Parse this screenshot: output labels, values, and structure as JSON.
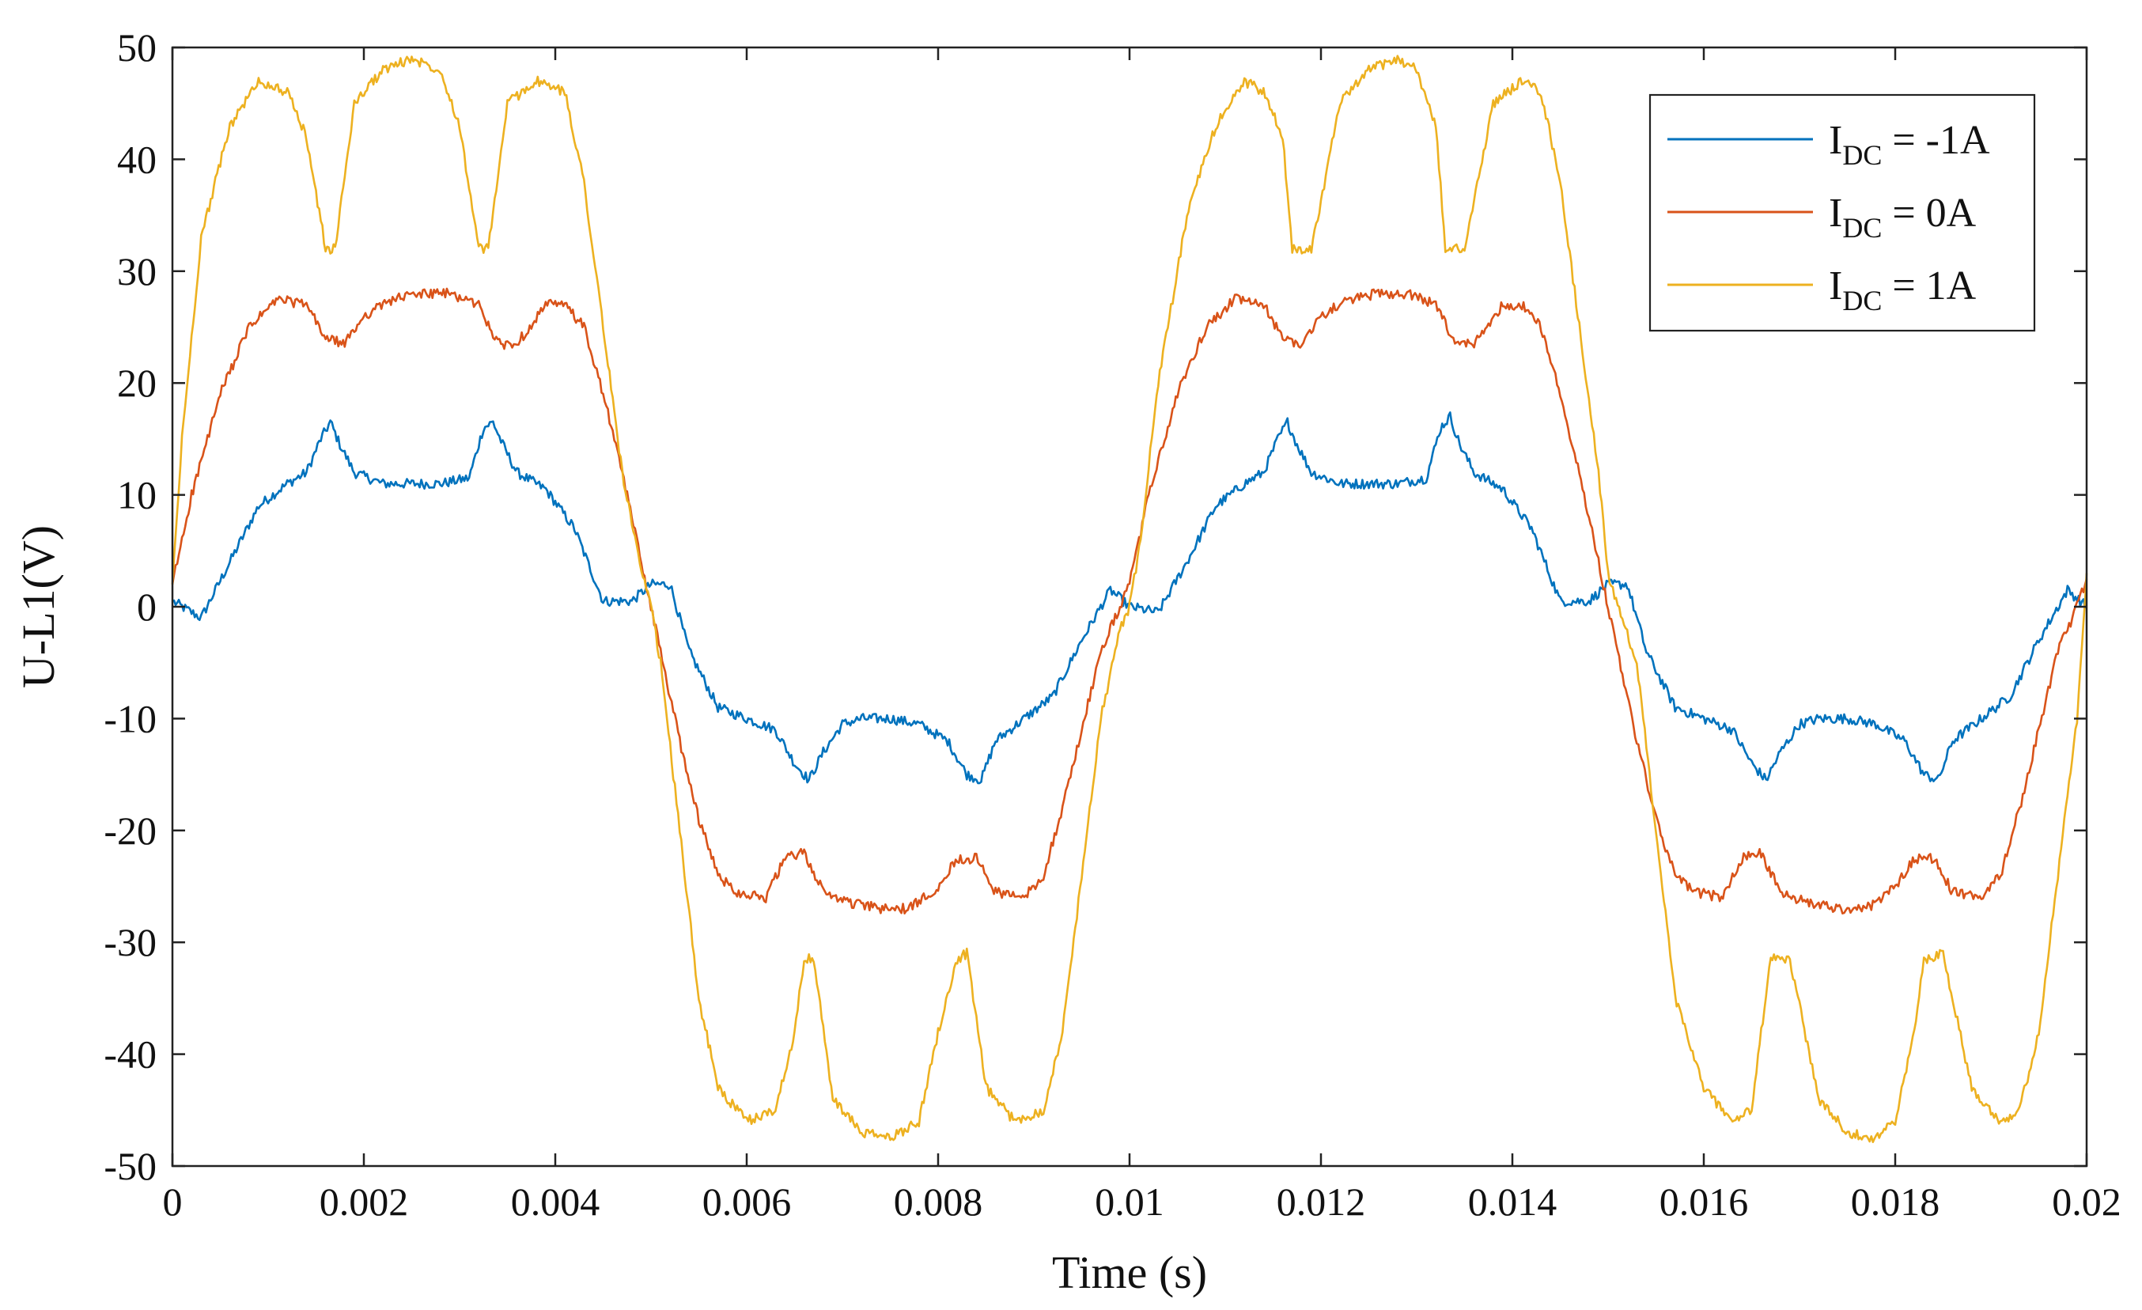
{
  "chart_data": {
    "type": "line",
    "xlabel": "Time (s)",
    "ylabel": "U-L1(V)",
    "xlim": [
      0,
      0.02
    ],
    "ylim": [
      -50,
      50
    ],
    "xticks": [
      0,
      0.002,
      0.004,
      0.006,
      0.008,
      0.01,
      0.012,
      0.014,
      0.016,
      0.018,
      0.02
    ],
    "xtick_labels": [
      "0",
      "0.002",
      "0.004",
      "0.006",
      "0.008",
      "0.01",
      "0.012",
      "0.014",
      "0.016",
      "0.018",
      "0.02"
    ],
    "yticks": [
      -50,
      -40,
      -30,
      -20,
      -10,
      0,
      10,
      20,
      30,
      40,
      50
    ],
    "ytick_labels": [
      "-50",
      "-40",
      "-30",
      "-20",
      "-10",
      "0",
      "10",
      "20",
      "30",
      "40",
      "50"
    ],
    "grid": false,
    "legend_position": "top-right",
    "series": [
      {
        "label_main": "I",
        "label_sub": "DC",
        "label_rest": " = -1A",
        "color": "#0072BD",
        "x": [
          0,
          0.0003,
          0.0006,
          0.0009,
          0.0012,
          0.0014,
          0.00155,
          0.00165,
          0.00175,
          0.0019,
          0.0022,
          0.0025,
          0.0028,
          0.0031,
          0.00325,
          0.00335,
          0.00345,
          0.0036,
          0.0039,
          0.0042,
          0.0045,
          0.0048,
          0.005,
          0.0052,
          0.0054,
          0.0057,
          0.006,
          0.0063,
          0.0065,
          0.00665,
          0.0068,
          0.007,
          0.0072,
          0.0075,
          0.0078,
          0.0081,
          0.0083,
          0.00845,
          0.0086,
          0.0089,
          0.0092,
          0.0095,
          0.0098,
          0.01,
          0.0103,
          0.0106,
          0.0109,
          0.0112,
          0.0114,
          0.01155,
          0.01165,
          0.01175,
          0.0119,
          0.0122,
          0.0125,
          0.0128,
          0.0131,
          0.01325,
          0.01335,
          0.01345,
          0.0136,
          0.0139,
          0.0142,
          0.0145,
          0.0148,
          0.015,
          0.0152,
          0.0154,
          0.0157,
          0.016,
          0.0163,
          0.0165,
          0.01665,
          0.0168,
          0.017,
          0.0172,
          0.0175,
          0.0178,
          0.0181,
          0.0183,
          0.01845,
          0.0186,
          0.0189,
          0.0192,
          0.0195,
          0.0198,
          0.02
        ],
        "y": [
          0.5,
          -1,
          4,
          9,
          11,
          12,
          15,
          16.5,
          14.5,
          12,
          11,
          11,
          11,
          11.5,
          16,
          16.5,
          14.5,
          12,
          10.5,
          7,
          0.5,
          0.5,
          2,
          2,
          -4,
          -9,
          -10,
          -11,
          -14,
          -15.5,
          -13,
          -10.5,
          -10,
          -10,
          -10.5,
          -12,
          -15,
          -15.5,
          -12,
          -10,
          -8,
          -3,
          1.5,
          0,
          -0.5,
          4,
          9,
          11,
          12,
          15,
          16.5,
          14.5,
          12,
          11,
          11,
          11,
          11.5,
          16,
          17,
          14.5,
          12,
          10.5,
          7,
          0.5,
          0.5,
          2,
          2,
          -4,
          -9,
          -10,
          -11,
          -14,
          -15.5,
          -13,
          -10.5,
          -10,
          -10,
          -10.5,
          -12,
          -15,
          -15.5,
          -12,
          -10,
          -8,
          -3,
          1.5,
          0
        ]
      },
      {
        "label_main": "I",
        "label_sub": "DC",
        "label_rest": " = 0A",
        "color": "#D95319",
        "x": [
          0,
          0.0002,
          0.0005,
          0.0008,
          0.0011,
          0.0014,
          0.0016,
          0.0018,
          0.002,
          0.0023,
          0.0026,
          0.0029,
          0.0032,
          0.0034,
          0.0036,
          0.0039,
          0.0041,
          0.0043,
          0.0045,
          0.0047,
          0.0049,
          0.005,
          0.0051,
          0.0053,
          0.0055,
          0.0057,
          0.0059,
          0.0062,
          0.0064,
          0.0066,
          0.0068,
          0.0071,
          0.0074,
          0.0077,
          0.008,
          0.0082,
          0.0084,
          0.0086,
          0.0089,
          0.0091,
          0.0093,
          0.0095,
          0.0097,
          0.0099,
          0.01,
          0.0102,
          0.0105,
          0.0108,
          0.0111,
          0.0114,
          0.0116,
          0.0118,
          0.012,
          0.0123,
          0.0126,
          0.0129,
          0.0132,
          0.0134,
          0.0136,
          0.0139,
          0.0141,
          0.0143,
          0.0145,
          0.0147,
          0.0149,
          0.015,
          0.0151,
          0.0153,
          0.0155,
          0.0157,
          0.0159,
          0.0162,
          0.0164,
          0.0166,
          0.0168,
          0.0171,
          0.0174,
          0.0177,
          0.018,
          0.0182,
          0.0184,
          0.0186,
          0.0189,
          0.0191,
          0.0193,
          0.0195,
          0.0197,
          0.0199,
          0.02
        ],
        "y": [
          2,
          10,
          19,
          25,
          27.5,
          27,
          24,
          23.5,
          26,
          27.5,
          28,
          28,
          27,
          23.5,
          23.5,
          27,
          27,
          25,
          19,
          12,
          4,
          0,
          -4,
          -12,
          -19,
          -24,
          -25.5,
          -26,
          -22.5,
          -22,
          -25.5,
          -26.5,
          -27,
          -27,
          -25,
          -22.5,
          -22.5,
          -25.5,
          -26,
          -24,
          -18,
          -11,
          -4,
          0,
          2,
          10,
          19,
          25,
          27.5,
          27,
          24,
          23.5,
          26,
          27.5,
          28,
          28,
          27,
          23.5,
          23.5,
          27,
          27,
          25,
          19,
          12,
          4,
          0,
          -4,
          -12,
          -19,
          -24,
          -25.5,
          -26,
          -22.5,
          -22,
          -25.5,
          -26.5,
          -27,
          -27,
          -25,
          -22.5,
          -22.5,
          -25.5,
          -26,
          -24,
          -18,
          -11,
          -4,
          0,
          2.5
        ]
      },
      {
        "label_main": "I",
        "label_sub": "DC",
        "label_rest": " = 1A",
        "color": "#EDB120",
        "x": [
          0,
          0.0001,
          0.0003,
          0.0006,
          0.0009,
          0.0012,
          0.0014,
          0.0016,
          0.0017,
          0.0019,
          0.0022,
          0.0025,
          0.0028,
          0.003,
          0.0032,
          0.0033,
          0.0035,
          0.0038,
          0.0041,
          0.0043,
          0.0045,
          0.0047,
          0.0049,
          0.005,
          0.0051,
          0.0053,
          0.0055,
          0.0057,
          0.006,
          0.0063,
          0.0065,
          0.0066,
          0.0067,
          0.0069,
          0.0072,
          0.0075,
          0.0078,
          0.008,
          0.0082,
          0.0083,
          0.0085,
          0.0088,
          0.0091,
          0.0093,
          0.0095,
          0.0097,
          0.0099,
          0.01,
          0.0101,
          0.0103,
          0.0106,
          0.0109,
          0.0112,
          0.0114,
          0.0116,
          0.0117,
          0.0119,
          0.0122,
          0.0125,
          0.0128,
          0.013,
          0.0132,
          0.0133,
          0.0135,
          0.0138,
          0.0141,
          0.0143,
          0.0145,
          0.0147,
          0.0149,
          0.015,
          0.0151,
          0.0153,
          0.0155,
          0.0157,
          0.016,
          0.0163,
          0.0165,
          0.0166,
          0.0167,
          0.0169,
          0.0172,
          0.0175,
          0.0178,
          0.018,
          0.0182,
          0.0183,
          0.0185,
          0.0188,
          0.0191,
          0.0193,
          0.0195,
          0.0197,
          0.0199,
          0.02
        ],
        "y": [
          2,
          15,
          33,
          43,
          47,
          46,
          42,
          32,
          32,
          45,
          48,
          49,
          48,
          43,
          32,
          32,
          45,
          47,
          46,
          38,
          25,
          12,
          3,
          0,
          -5,
          -20,
          -35,
          -43,
          -46,
          -45,
          -38,
          -31.5,
          -31.5,
          -44,
          -47,
          -47.5,
          -46,
          -38,
          -31.5,
          -31,
          -43,
          -46,
          -45,
          -38,
          -24,
          -10,
          -2,
          0,
          5,
          20,
          35,
          43,
          47,
          46,
          42,
          32,
          32,
          45,
          48,
          49,
          48,
          43,
          32,
          32,
          45,
          47,
          46,
          38,
          25,
          12,
          3,
          0,
          -5,
          -20,
          -35,
          -43,
          -46,
          -45,
          -38,
          -31.5,
          -31.5,
          -44,
          -47,
          -47.5,
          -46,
          -38,
          -31.5,
          -31,
          -43,
          -46,
          -45,
          -38,
          -24,
          -10,
          3
        ]
      }
    ]
  }
}
